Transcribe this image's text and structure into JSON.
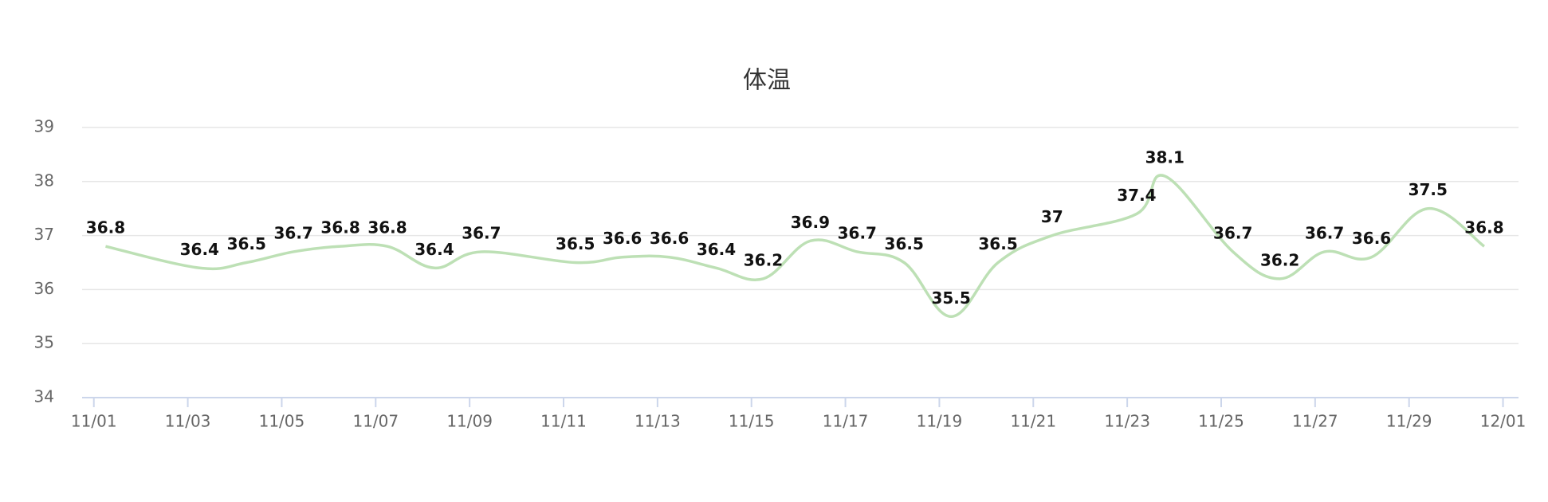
{
  "chart_data": {
    "type": "line",
    "title": "体温",
    "x": [
      0.25,
      2.25,
      3.25,
      4.25,
      5.25,
      6.25,
      7.25,
      8.25,
      10.25,
      11.25,
      12.25,
      13.25,
      14.25,
      15.25,
      16.25,
      17.25,
      18.25,
      19.25,
      20.4,
      22.2,
      22.8,
      24.25,
      25.25,
      26.2,
      27.2,
      28.4,
      29.6
    ],
    "series": [
      {
        "name": "体温",
        "color": "#bde0b5",
        "values": [
          36.8,
          36.4,
          36.5,
          36.7,
          36.8,
          36.8,
          36.4,
          36.7,
          36.5,
          36.6,
          36.6,
          36.4,
          36.2,
          36.9,
          36.7,
          36.5,
          35.5,
          36.5,
          37,
          37.4,
          38.1,
          36.7,
          36.2,
          36.7,
          36.6,
          37.5,
          36.8
        ]
      }
    ],
    "xlim": [
      -0.25,
      30.33
    ],
    "xticks": [
      {
        "value": 0,
        "label": "11/01"
      },
      {
        "value": 2,
        "label": "11/03"
      },
      {
        "value": 4,
        "label": "11/05"
      },
      {
        "value": 6,
        "label": "11/07"
      },
      {
        "value": 8,
        "label": "11/09"
      },
      {
        "value": 10,
        "label": "11/11"
      },
      {
        "value": 12,
        "label": "11/13"
      },
      {
        "value": 14,
        "label": "11/15"
      },
      {
        "value": 16,
        "label": "11/17"
      },
      {
        "value": 18,
        "label": "11/19"
      },
      {
        "value": 20,
        "label": "11/21"
      },
      {
        "value": 22,
        "label": "11/23"
      },
      {
        "value": 24,
        "label": "11/25"
      },
      {
        "value": 26,
        "label": "11/27"
      },
      {
        "value": 28,
        "label": "11/29"
      },
      {
        "value": 30,
        "label": "12/01"
      }
    ],
    "ylim": [
      34,
      39
    ],
    "yticks": [
      34,
      35,
      36,
      37,
      38,
      39
    ],
    "grid": true
  }
}
